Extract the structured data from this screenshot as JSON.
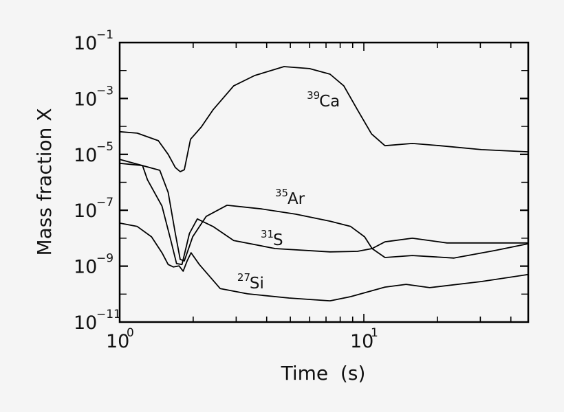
{
  "chart_data": {
    "type": "line",
    "title": "",
    "xlabel": "Time  (s)",
    "ylabel": "Mass fraction X",
    "xscale": "log",
    "yscale": "log",
    "xlim": [
      1,
      47
    ],
    "ylim": [
      1e-11,
      0.1
    ],
    "x_ticks": [
      {
        "value": 1,
        "base": "10",
        "exp": "0"
      },
      {
        "value": 10,
        "base": "10",
        "exp": "1"
      }
    ],
    "y_ticks": [
      {
        "value": 0.1,
        "base": "10",
        "exp": "−1"
      },
      {
        "value": 0.001,
        "base": "10",
        "exp": "−3"
      },
      {
        "value": 1e-05,
        "base": "10",
        "exp": "−5"
      },
      {
        "value": 1e-07,
        "base": "10",
        "exp": "−7"
      },
      {
        "value": 1e-09,
        "base": "10",
        "exp": "−9"
      },
      {
        "value": 1e-11,
        "base": "10",
        "exp": "−11"
      }
    ],
    "grid": false,
    "legend": "inline labels",
    "series": [
      {
        "name": "39Ca",
        "label_mass": "39",
        "label_elem": "Ca",
        "label_pos": {
          "t": 5.84,
          "log10X": -3.29
        },
        "t": [
          1.0,
          1.18,
          1.44,
          1.58,
          1.69,
          1.77,
          1.84,
          1.95,
          2.16,
          2.41,
          2.93,
          3.57,
          4.71,
          5.99,
          7.27,
          8.28,
          9.42,
          10.75,
          12.2,
          15.8,
          20.5,
          30.3,
          47.0
        ],
        "log10X": [
          -4.19,
          -4.24,
          -4.51,
          -5.0,
          -5.47,
          -5.62,
          -5.55,
          -4.46,
          -4.02,
          -3.41,
          -2.55,
          -2.18,
          -1.86,
          -1.93,
          -2.13,
          -2.55,
          -3.41,
          -4.27,
          -4.69,
          -4.61,
          -4.69,
          -4.83,
          -4.91
        ]
      },
      {
        "name": "35Ar",
        "label_mass": "35",
        "label_elem": "Ar",
        "label_pos": {
          "t": 4.33,
          "log10X": -6.77
        },
        "t": [
          1.0,
          1.24,
          1.46,
          1.58,
          1.69,
          1.77,
          1.84,
          1.99,
          2.26,
          2.75,
          3.8,
          5.26,
          7.27,
          8.83,
          10.07,
          10.81,
          12.2,
          15.8,
          23.4,
          34.5,
          47.0
        ],
        "log10X": [
          -5.32,
          -5.4,
          -5.57,
          -6.36,
          -7.83,
          -8.76,
          -8.81,
          -7.95,
          -7.22,
          -6.82,
          -6.95,
          -7.14,
          -7.39,
          -7.58,
          -7.95,
          -8.37,
          -8.69,
          -8.62,
          -8.71,
          -8.44,
          -8.2
        ]
      },
      {
        "name": "31S",
        "label_mass": "31",
        "label_elem": "S",
        "label_pos": {
          "t": 3.78,
          "log10X": -8.25
        },
        "t": [
          1.0,
          1.24,
          1.3,
          1.49,
          1.62,
          1.71,
          1.8,
          1.93,
          2.08,
          2.41,
          2.93,
          4.33,
          7.27,
          9.42,
          10.81,
          12.2,
          15.8,
          21.9,
          47.0
        ],
        "log10X": [
          -5.18,
          -5.4,
          -5.91,
          -6.85,
          -8.08,
          -8.91,
          -8.94,
          -7.83,
          -7.31,
          -7.58,
          -8.08,
          -8.37,
          -8.49,
          -8.47,
          -8.37,
          -8.13,
          -8.0,
          -8.17,
          -8.17
        ]
      },
      {
        "name": "27Si",
        "label_mass": "27",
        "label_elem": "Si",
        "label_pos": {
          "t": 3.03,
          "log10X": -9.8
        },
        "t": [
          1.0,
          1.18,
          1.35,
          1.49,
          1.58,
          1.66,
          1.75,
          1.82,
          1.89,
          1.96,
          2.12,
          2.58,
          3.34,
          4.93,
          7.27,
          8.83,
          12.2,
          14.9,
          18.6,
          30.3,
          47.0
        ],
        "log10X": [
          -7.46,
          -7.58,
          -7.95,
          -8.52,
          -8.94,
          -9.03,
          -8.99,
          -9.18,
          -8.81,
          -8.52,
          -8.94,
          -9.8,
          -9.99,
          -10.14,
          -10.24,
          -10.09,
          -9.75,
          -9.65,
          -9.77,
          -9.55,
          -9.3
        ]
      }
    ]
  }
}
